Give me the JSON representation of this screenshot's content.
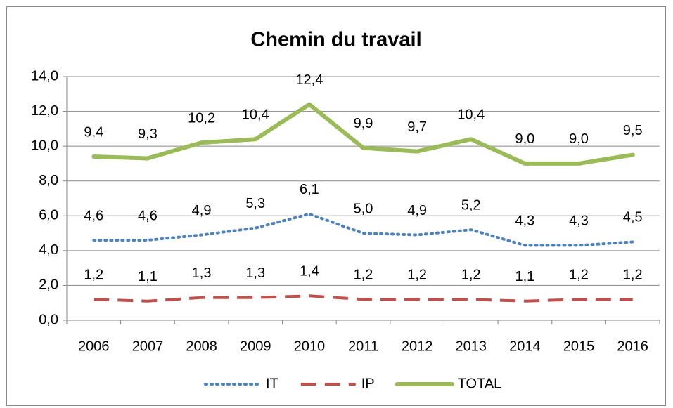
{
  "chart_data": {
    "type": "line",
    "title": "Chemin du travail",
    "categories": [
      "2006",
      "2007",
      "2008",
      "2009",
      "2010",
      "2011",
      "2012",
      "2013",
      "2014",
      "2015",
      "2016"
    ],
    "series": [
      {
        "name": "IT",
        "color": "#4f81bd",
        "line_style": "dotted",
        "values": [
          4.6,
          4.6,
          4.9,
          5.3,
          6.1,
          5.0,
          4.9,
          5.2,
          4.3,
          4.3,
          4.5
        ],
        "value_labels": [
          "4,6",
          "4,6",
          "4,9",
          "5,3",
          "6,1",
          "5,0",
          "4,9",
          "5,2",
          "4,3",
          "4,3",
          "4,5"
        ]
      },
      {
        "name": "IP",
        "color": "#c0504d",
        "line_style": "dashed",
        "values": [
          1.2,
          1.1,
          1.3,
          1.3,
          1.4,
          1.2,
          1.2,
          1.2,
          1.1,
          1.2,
          1.2
        ],
        "value_labels": [
          "1,2",
          "1,1",
          "1,3",
          "1,3",
          "1,4",
          "1,2",
          "1,2",
          "1,2",
          "1,1",
          "1,2",
          "1,2"
        ]
      },
      {
        "name": "TOTAL",
        "color": "#9bbb59",
        "line_style": "solid",
        "values": [
          9.4,
          9.3,
          10.2,
          10.4,
          12.4,
          9.9,
          9.7,
          10.4,
          9.0,
          9.0,
          9.5
        ],
        "value_labels": [
          "9,4",
          "9,3",
          "10,2",
          "10,4",
          "12,4",
          "9,9",
          "9,7",
          "10,4",
          "9,0",
          "9,0",
          "9,5"
        ]
      }
    ],
    "ylim": [
      0,
      14
    ],
    "yticks": [
      {
        "value": 0,
        "label": "0,0"
      },
      {
        "value": 2,
        "label": "2,0"
      },
      {
        "value": 4,
        "label": "4,0"
      },
      {
        "value": 6,
        "label": "6,0"
      },
      {
        "value": 8,
        "label": "8,0"
      },
      {
        "value": 10,
        "label": "10,0"
      },
      {
        "value": 12,
        "label": "12,0"
      },
      {
        "value": 14,
        "label": "14,0"
      }
    ],
    "grid": true,
    "legend": "bottom"
  }
}
